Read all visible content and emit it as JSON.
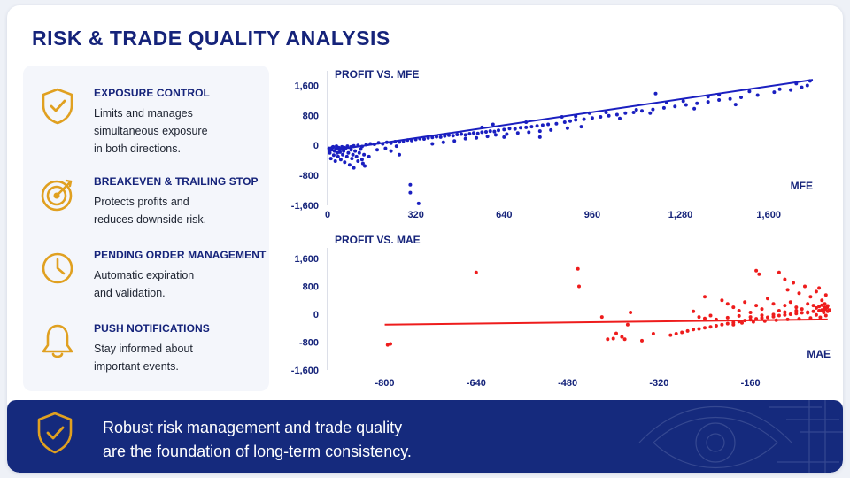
{
  "page": {
    "title": "RISK & TRADE QUALITY ANALYSIS"
  },
  "colors": {
    "navy": "#15237a",
    "gold": "#e0a020",
    "mfe_series": "#1a1fc0",
    "mae_series": "#ee1c1c",
    "banner": "#152a7d"
  },
  "features": [
    {
      "icon": "shield-check-icon",
      "title": "EXPOSURE CONTROL",
      "lines": [
        "Limits and manages",
        "simultaneous exposure",
        "in both directions."
      ]
    },
    {
      "icon": "target-icon",
      "title": "BREAKEVEN & TRAILING STOP",
      "lines": [
        "Protects profits and",
        "reduces downside risk."
      ]
    },
    {
      "icon": "clock-icon",
      "title": "PENDING ORDER MANAGEMENT",
      "lines": [
        "Automatic expiration",
        "and validation."
      ]
    },
    {
      "icon": "bell-icon",
      "title": "PUSH NOTIFICATIONS",
      "lines": [
        "Stay informed about",
        "important events."
      ]
    }
  ],
  "banner": {
    "icon": "shield-check-icon",
    "line1": "Robust risk management and trade quality",
    "line2": "are the foundation of long-term consistency.",
    "decoration": "eye-icon"
  },
  "chart_data": [
    {
      "type": "scatter",
      "title": "PROFIT VS. MFE",
      "xlabel": "MFE",
      "ylabel": "",
      "xlim": [
        0,
        1760
      ],
      "ylim": [
        -1600,
        1800
      ],
      "x_ticks": [
        "0",
        "320",
        "640",
        "960",
        "1,280",
        "1,600"
      ],
      "x_tick_values": [
        0,
        320,
        640,
        960,
        1280,
        1600
      ],
      "y_ticks": [
        "1,600",
        "800",
        "0",
        "-800",
        "-1,600"
      ],
      "y_tick_values": [
        1600,
        800,
        0,
        -800,
        -1600
      ],
      "grid": false,
      "color": "#1a1fc0",
      "trendline": [
        [
          0,
          -150
        ],
        [
          1760,
          1750
        ]
      ],
      "points": [
        [
          5,
          -80
        ],
        [
          8,
          -200
        ],
        [
          12,
          -350
        ],
        [
          15,
          -120
        ],
        [
          18,
          -50
        ],
        [
          22,
          -260
        ],
        [
          25,
          -150
        ],
        [
          28,
          -420
        ],
        [
          30,
          -90
        ],
        [
          35,
          -200
        ],
        [
          38,
          -300
        ],
        [
          40,
          -60
        ],
        [
          45,
          -180
        ],
        [
          48,
          -380
        ],
        [
          50,
          -100
        ],
        [
          55,
          -250
        ],
        [
          58,
          -150
        ],
        [
          62,
          -450
        ],
        [
          65,
          -80
        ],
        [
          70,
          -300
        ],
        [
          75,
          -200
        ],
        [
          80,
          -520
        ],
        [
          85,
          -120
        ],
        [
          88,
          -350
        ],
        [
          92,
          -250
        ],
        [
          95,
          -600
        ],
        [
          100,
          -150
        ],
        [
          105,
          -300
        ],
        [
          110,
          -420
        ],
        [
          115,
          -200
        ],
        [
          120,
          -100
        ],
        [
          125,
          -380
        ],
        [
          128,
          -480
        ],
        [
          132,
          -250
        ],
        [
          135,
          -550
        ],
        [
          12,
          -80
        ],
        [
          20,
          -40
        ],
        [
          32,
          -20
        ],
        [
          42,
          -110
        ],
        [
          52,
          -40
        ],
        [
          60,
          -60
        ],
        [
          72,
          -20
        ],
        [
          85,
          -40
        ],
        [
          95,
          -10
        ],
        [
          110,
          0
        ],
        [
          125,
          -30
        ],
        [
          140,
          20
        ],
        [
          155,
          40
        ],
        [
          170,
          30
        ],
        [
          185,
          70
        ],
        [
          200,
          40
        ],
        [
          215,
          80
        ],
        [
          230,
          60
        ],
        [
          245,
          100
        ],
        [
          260,
          90
        ],
        [
          275,
          120
        ],
        [
          290,
          140
        ],
        [
          305,
          130
        ],
        [
          320,
          160
        ],
        [
          335,
          180
        ],
        [
          350,
          170
        ],
        [
          365,
          200
        ],
        [
          380,
          210
        ],
        [
          395,
          230
        ],
        [
          410,
          220
        ],
        [
          425,
          250
        ],
        [
          440,
          270
        ],
        [
          455,
          260
        ],
        [
          470,
          290
        ],
        [
          485,
          300
        ],
        [
          500,
          280
        ],
        [
          515,
          310
        ],
        [
          530,
          330
        ],
        [
          545,
          320
        ],
        [
          560,
          350
        ],
        [
          575,
          360
        ],
        [
          590,
          380
        ],
        [
          605,
          370
        ],
        [
          620,
          400
        ],
        [
          640,
          420
        ],
        [
          660,
          450
        ],
        [
          680,
          440
        ],
        [
          700,
          470
        ],
        [
          720,
          480
        ],
        [
          740,
          500
        ],
        [
          760,
          520
        ],
        [
          780,
          540
        ],
        [
          800,
          560
        ],
        [
          830,
          580
        ],
        [
          860,
          620
        ],
        [
          880,
          650
        ],
        [
          900,
          680
        ],
        [
          930,
          700
        ],
        [
          960,
          730
        ],
        [
          990,
          760
        ],
        [
          1020,
          790
        ],
        [
          1050,
          820
        ],
        [
          1080,
          860
        ],
        [
          1110,
          880
        ],
        [
          1140,
          920
        ],
        [
          1180,
          960
        ],
        [
          1220,
          1000
        ],
        [
          1260,
          1040
        ],
        [
          1300,
          1080
        ],
        [
          1340,
          1120
        ],
        [
          1380,
          1160
        ],
        [
          1420,
          1210
        ],
        [
          1460,
          1240
        ],
        [
          1500,
          1280
        ],
        [
          1560,
          1340
        ],
        [
          1620,
          1420
        ],
        [
          1680,
          1480
        ],
        [
          1720,
          1550
        ],
        [
          1740,
          1600
        ],
        [
          560,
          480
        ],
        [
          600,
          560
        ],
        [
          640,
          220
        ],
        [
          720,
          620
        ],
        [
          770,
          220
        ],
        [
          850,
          760
        ],
        [
          900,
          780
        ],
        [
          950,
          860
        ],
        [
          1010,
          880
        ],
        [
          1060,
          720
        ],
        [
          1120,
          950
        ],
        [
          1170,
          860
        ],
        [
          1230,
          1140
        ],
        [
          1290,
          1180
        ],
        [
          1330,
          980
        ],
        [
          1380,
          1300
        ],
        [
          1480,
          1090
        ],
        [
          1530,
          1440
        ],
        [
          1640,
          1500
        ],
        [
          1700,
          1650
        ],
        [
          1750,
          1720
        ],
        [
          1190,
          1380
        ],
        [
          1420,
          1350
        ],
        [
          260,
          -250
        ],
        [
          300,
          -1050
        ],
        [
          300,
          -1260
        ],
        [
          330,
          -1550
        ],
        [
          150,
          -300
        ],
        [
          180,
          -120
        ],
        [
          210,
          -80
        ],
        [
          230,
          -150
        ],
        [
          250,
          -20
        ],
        [
          380,
          40
        ],
        [
          420,
          80
        ],
        [
          460,
          120
        ],
        [
          500,
          180
        ],
        [
          540,
          200
        ],
        [
          580,
          240
        ],
        [
          610,
          280
        ],
        [
          650,
          300
        ],
        [
          690,
          330
        ],
        [
          730,
          350
        ],
        [
          770,
          380
        ],
        [
          810,
          410
        ],
        [
          870,
          460
        ],
        [
          920,
          500
        ]
      ]
    },
    {
      "type": "scatter",
      "title": "PROFIT VS. MAE",
      "xlabel": "MAE",
      "ylabel": "",
      "xlim": [
        -900,
        -20
      ],
      "ylim": [
        -1600,
        1700
      ],
      "x_ticks": [
        "-800",
        "-640",
        "-480",
        "-320",
        "-160"
      ],
      "x_tick_values": [
        -800,
        -640,
        -480,
        -320,
        -160
      ],
      "y_ticks": [
        "1,600",
        "800",
        "0",
        "-800",
        "-1,600"
      ],
      "y_tick_values": [
        1600,
        800,
        0,
        -800,
        -1600
      ],
      "grid": false,
      "color": "#ee1c1c",
      "trendline": [
        [
          -800,
          -300
        ],
        [
          -25,
          -150
        ]
      ],
      "points": [
        [
          -790,
          -850
        ],
        [
          -795,
          -880
        ],
        [
          -640,
          1200
        ],
        [
          -462,
          1300
        ],
        [
          -460,
          800
        ],
        [
          -420,
          -80
        ],
        [
          -410,
          -720
        ],
        [
          -400,
          -700
        ],
        [
          -395,
          -550
        ],
        [
          -385,
          -650
        ],
        [
          -380,
          -720
        ],
        [
          -375,
          -300
        ],
        [
          -370,
          50
        ],
        [
          -350,
          -760
        ],
        [
          -330,
          -560
        ],
        [
          -300,
          -600
        ],
        [
          -290,
          -560
        ],
        [
          -280,
          -520
        ],
        [
          -270,
          -480
        ],
        [
          -260,
          -440
        ],
        [
          -250,
          -420
        ],
        [
          -240,
          -390
        ],
        [
          -230,
          -360
        ],
        [
          -220,
          -330
        ],
        [
          -210,
          -300
        ],
        [
          -200,
          -270
        ],
        [
          -190,
          -240
        ],
        [
          -180,
          -210
        ],
        [
          -170,
          -180
        ],
        [
          -160,
          -160
        ],
        [
          -150,
          -130
        ],
        [
          -140,
          -110
        ],
        [
          -130,
          -90
        ],
        [
          -120,
          -70
        ],
        [
          -110,
          -40
        ],
        [
          -100,
          -20
        ],
        [
          -90,
          0
        ],
        [
          -80,
          20
        ],
        [
          -70,
          40
        ],
        [
          -60,
          60
        ],
        [
          -50,
          80
        ],
        [
          -40,
          100
        ],
        [
          -35,
          120
        ],
        [
          -30,
          140
        ],
        [
          -25,
          80
        ],
        [
          -150,
          1250
        ],
        [
          -145,
          1150
        ],
        [
          -110,
          1200
        ],
        [
          -100,
          1000
        ],
        [
          -95,
          700
        ],
        [
          -85,
          900
        ],
        [
          -75,
          600
        ],
        [
          -65,
          800
        ],
        [
          -55,
          500
        ],
        [
          -45,
          650
        ],
        [
          -40,
          750
        ],
        [
          -35,
          400
        ],
        [
          -30,
          300
        ],
        [
          -28,
          550
        ],
        [
          -26,
          200
        ],
        [
          -210,
          400
        ],
        [
          -200,
          300
        ],
        [
          -190,
          200
        ],
        [
          -180,
          100
        ],
        [
          -170,
          350
        ],
        [
          -160,
          50
        ],
        [
          -150,
          250
        ],
        [
          -140,
          150
        ],
        [
          -130,
          450
        ],
        [
          -120,
          300
        ],
        [
          -110,
          100
        ],
        [
          -100,
          250
        ],
        [
          -90,
          350
        ],
        [
          -80,
          200
        ],
        [
          -70,
          150
        ],
        [
          -60,
          300
        ],
        [
          -50,
          250
        ],
        [
          -45,
          180
        ],
        [
          -40,
          220
        ],
        [
          -35,
          260
        ],
        [
          -30,
          200
        ],
        [
          -28,
          160
        ],
        [
          -25,
          240
        ],
        [
          -22,
          120
        ],
        [
          -260,
          80
        ],
        [
          -250,
          -80
        ],
        [
          -240,
          -120
        ],
        [
          -230,
          -40
        ],
        [
          -220,
          -150
        ],
        [
          -200,
          -100
        ],
        [
          -180,
          -50
        ],
        [
          -160,
          -80
        ],
        [
          -140,
          -30
        ],
        [
          -120,
          -10
        ],
        [
          -100,
          60
        ],
        [
          -80,
          100
        ],
        [
          -60,
          40
        ],
        [
          -45,
          -20
        ],
        [
          -32,
          50
        ],
        [
          -28,
          -40
        ],
        [
          -240,
          500
        ],
        [
          -190,
          -300
        ],
        [
          -175,
          -250
        ],
        [
          -155,
          -220
        ],
        [
          -135,
          -200
        ],
        [
          -115,
          -170
        ],
        [
          -95,
          -150
        ],
        [
          -75,
          -130
        ],
        [
          -55,
          -110
        ],
        [
          -38,
          -90
        ]
      ]
    }
  ]
}
